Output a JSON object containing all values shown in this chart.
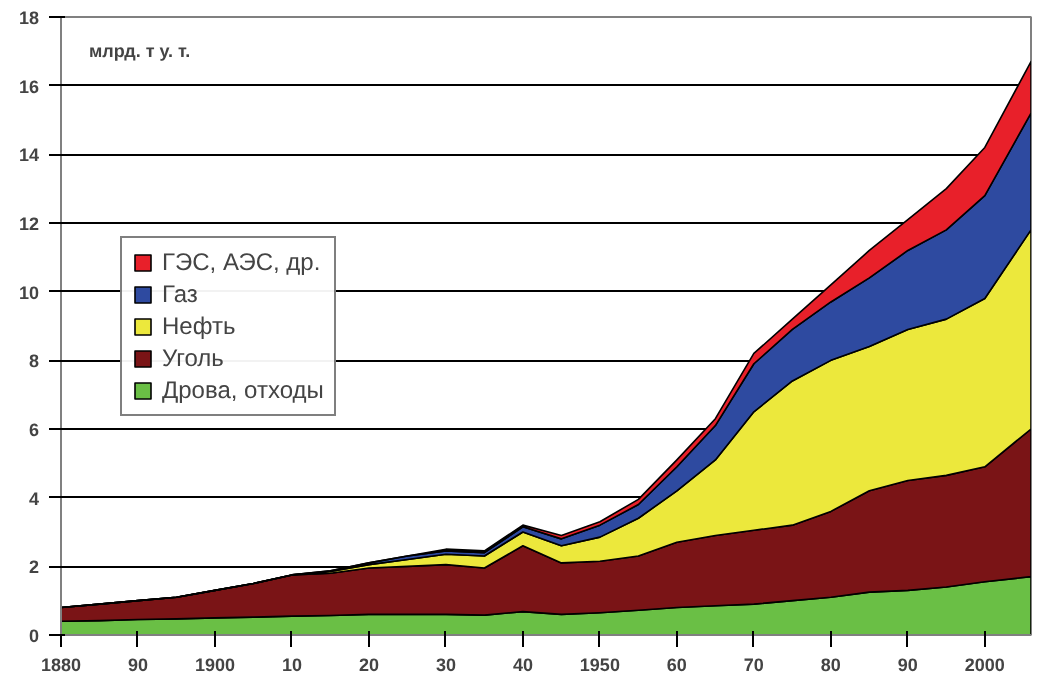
{
  "chart_data": {
    "type": "area",
    "stacked": true,
    "ylabel": "млрд. т у. т.",
    "x": [
      1880,
      1885,
      1890,
      1895,
      1900,
      1905,
      1910,
      1915,
      1920,
      1925,
      1930,
      1935,
      1940,
      1945,
      1950,
      1955,
      1960,
      1965,
      1970,
      1975,
      1980,
      1985,
      1990,
      1995,
      2000,
      2006
    ],
    "series": [
      {
        "name": "Дрова, отходы",
        "color": "#6abf45",
        "values": [
          0.4,
          0.42,
          0.45,
          0.47,
          0.5,
          0.52,
          0.55,
          0.57,
          0.6,
          0.6,
          0.6,
          0.58,
          0.68,
          0.6,
          0.65,
          0.72,
          0.8,
          0.85,
          0.9,
          1.0,
          1.1,
          1.25,
          1.3,
          1.4,
          1.55,
          1.7
        ]
      },
      {
        "name": "Уголь",
        "color": "#7a1416",
        "values": [
          0.4,
          0.48,
          0.55,
          0.63,
          0.8,
          0.98,
          1.2,
          1.23,
          1.35,
          1.4,
          1.45,
          1.37,
          1.92,
          1.5,
          1.5,
          1.58,
          1.9,
          2.05,
          2.15,
          2.2,
          2.5,
          2.95,
          3.2,
          3.25,
          3.35,
          4.3
        ]
      },
      {
        "name": "Нефть",
        "color": "#ece83c",
        "values": [
          0,
          0,
          0,
          0,
          0,
          0,
          0,
          0.05,
          0.1,
          0.2,
          0.3,
          0.35,
          0.4,
          0.5,
          0.7,
          1.1,
          1.5,
          2.2,
          3.45,
          4.2,
          4.4,
          4.2,
          4.4,
          4.55,
          4.9,
          5.8
        ]
      },
      {
        "name": "Газ",
        "color": "#2e4aa0",
        "values": [
          0,
          0,
          0,
          0,
          0,
          0,
          0,
          0.02,
          0.05,
          0.1,
          0.1,
          0.1,
          0.15,
          0.2,
          0.35,
          0.4,
          0.7,
          1.0,
          1.4,
          1.5,
          1.7,
          2.0,
          2.3,
          2.6,
          3.0,
          3.4
        ]
      },
      {
        "name": "ГЭС, АЭС, др.",
        "color": "#e8202a",
        "values": [
          0,
          0,
          0,
          0,
          0,
          0,
          0,
          0,
          0,
          0,
          0.05,
          0.05,
          0.05,
          0.1,
          0.1,
          0.15,
          0.2,
          0.2,
          0.3,
          0.3,
          0.5,
          0.8,
          0.9,
          1.2,
          1.4,
          1.5
        ]
      }
    ],
    "xlim": [
      1880,
      2006
    ],
    "ylim": [
      0,
      18
    ],
    "xticks": [
      {
        "value": 1880,
        "label": "1880"
      },
      {
        "value": 1890,
        "label": "90"
      },
      {
        "value": 1900,
        "label": "1900"
      },
      {
        "value": 1910,
        "label": "10"
      },
      {
        "value": 1920,
        "label": "20"
      },
      {
        "value": 1930,
        "label": "30"
      },
      {
        "value": 1940,
        "label": "40"
      },
      {
        "value": 1950,
        "label": "1950"
      },
      {
        "value": 1960,
        "label": "60"
      },
      {
        "value": 1970,
        "label": "70"
      },
      {
        "value": 1980,
        "label": "80"
      },
      {
        "value": 1990,
        "label": "90"
      },
      {
        "value": 2000,
        "label": "2000"
      }
    ],
    "yticks": [
      0,
      2,
      4,
      6,
      8,
      10,
      12,
      14,
      16,
      18
    ],
    "grid": "y",
    "legend": "left"
  }
}
